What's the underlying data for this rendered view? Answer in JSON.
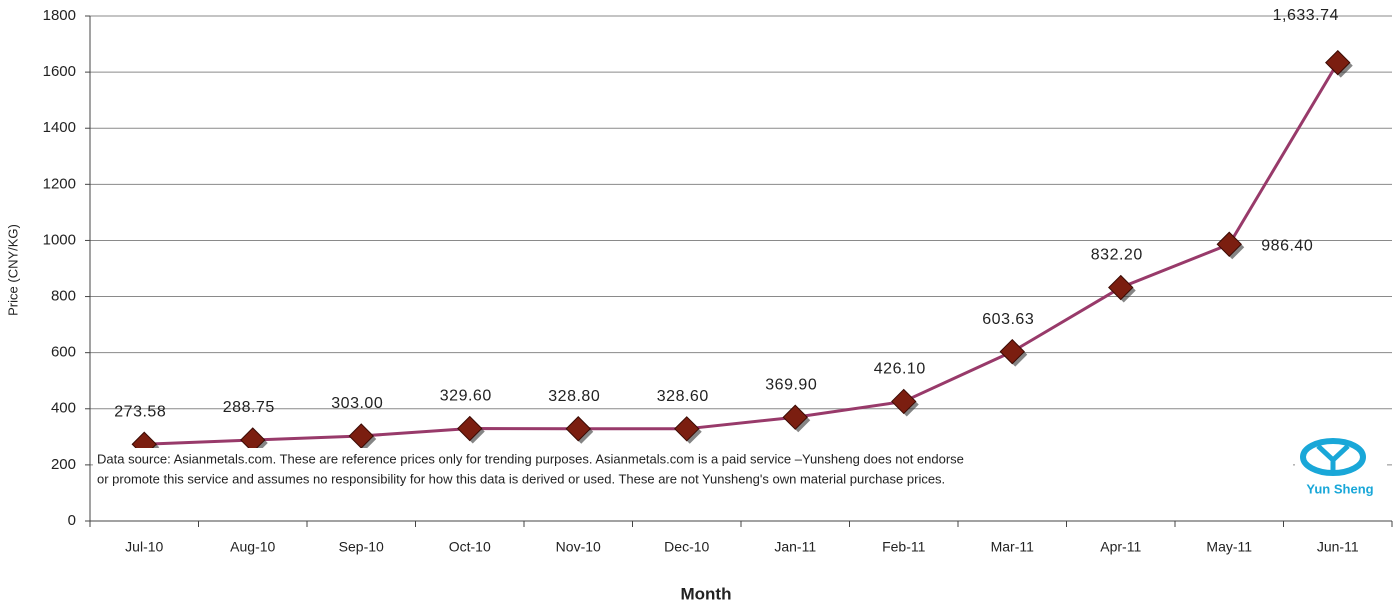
{
  "chart_data": {
    "type": "line",
    "y_label": "Price (CNY/KG)",
    "x_label": "Month",
    "categories": [
      "Jul-10",
      "Aug-10",
      "Sep-10",
      "Oct-10",
      "Nov-10",
      "Dec-10",
      "Jan-11",
      "Feb-11",
      "Mar-11",
      "Apr-11",
      "May-11",
      "Jun-11"
    ],
    "series": [
      {
        "name": "Price",
        "color": "#983a6a",
        "marker_color": "#7b1e10",
        "values": [
          273.58,
          288.75,
          303.0,
          329.6,
          328.8,
          328.6,
          369.9,
          426.1,
          603.63,
          832.2,
          986.4,
          1633.74
        ],
        "value_labels": [
          "273.58",
          "288.75",
          "303.00",
          "329.60",
          "328.80",
          "328.60",
          "369.90",
          "426.10",
          "603.63",
          "832.20",
          "986.40",
          "1,633.74"
        ]
      }
    ],
    "ylim": [
      0,
      1800
    ],
    "yticks": [
      0,
      200,
      400,
      600,
      800,
      1000,
      1200,
      1400,
      1600,
      1800
    ],
    "grid": true,
    "annotations": [
      "Data source: Asianmetals.com. These are reference prices only for trending purposes. Asianmetals.com is a paid service –Yunsheng does not endorse",
      "or promote this service and assumes no responsibility for how  this data is derived or used.  These are not Yunsheng's own material purchase prices."
    ],
    "logo_text": "Yun Sheng"
  }
}
